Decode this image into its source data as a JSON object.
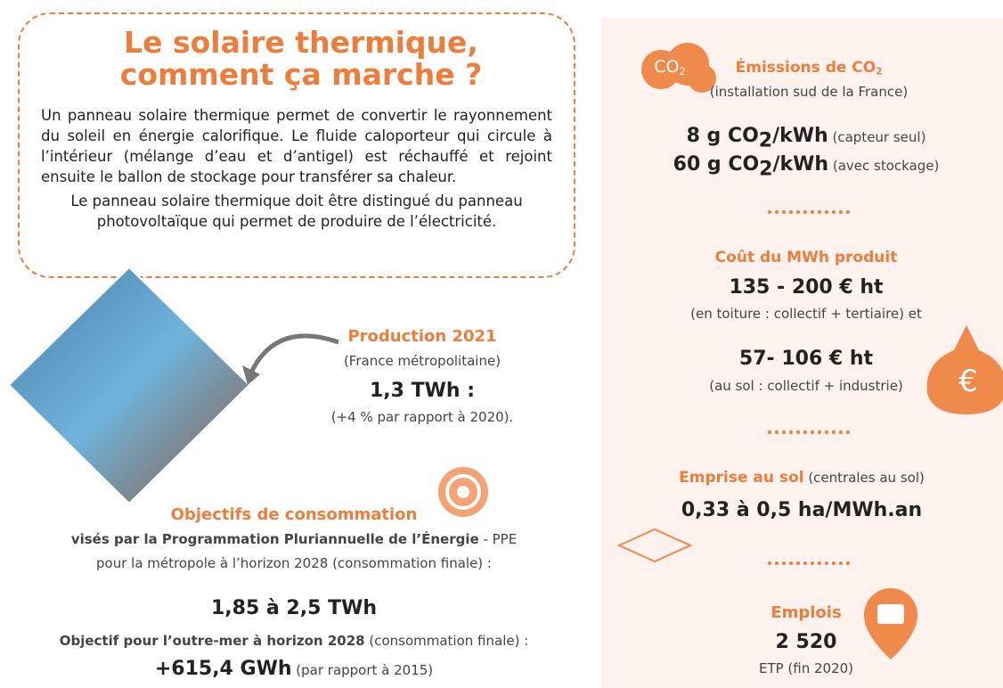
{
  "intro": {
    "title_lines": [
      "Le solaire thermique,",
      "comment ça marche ?"
    ],
    "paragraphs": [
      "Un panneau solaire thermique permet de convertir le rayonnement du soleil en énergie calorifique. Le fluide caloporteur qui circule à l’intérieur (mélange d’eau et d’antigel) est réchauffé et rejoint ensuite le ballon de stockage pour transférer sa chaleur.",
      "Le panneau solaire thermique doit être distingué du panneau photovoltaïque qui permet de produire de l’électricité."
    ]
  },
  "production": {
    "title": "Production 2021",
    "scope": "(France métropolitaine)",
    "value": "1,3 TWh :",
    "note": "(+4 % par rapport à 2020)."
  },
  "objectives": {
    "title": "Objectifs de consommation",
    "line1_bold": "visés par la Programmation Pluriannuelle de l’Énergie",
    "line1_rest": " - PPE",
    "line2": "pour la métropole à l’horizon 2028 (consommation finale) :",
    "metro_value": "1,85 à 2,5 TWh",
    "overseas_bold": "Objectif pour l’outre-mer à horizon 2028",
    "overseas_rest": " (consommation finale) :",
    "overseas_value": "+615,4 GWh",
    "overseas_note": " (par rapport à 2015)"
  },
  "emissions": {
    "icon_label": "CO",
    "icon_sub": "2",
    "title": "Émissions de CO",
    "title_sub": "2",
    "scope": "(installation sud de la France)",
    "rows": [
      {
        "value": "8 g CO",
        "sub": "2",
        "unit": "/kWh",
        "note": " (capteur seul)"
      },
      {
        "value": "60 g CO",
        "sub": "2",
        "unit": "/kWh",
        "note": " (avec stockage)"
      }
    ]
  },
  "cost": {
    "title": "Coût du MWh produit",
    "icon": "€",
    "rows": [
      {
        "value": "135 - 200 € ht",
        "note": "(en toiture : collectif + tertiaire) et"
      },
      {
        "value": "57- 106 € ht",
        "note": "(au sol : collectif + industrie)"
      }
    ]
  },
  "land": {
    "title": "Emprise au sol",
    "title_note": " (centrales au sol)",
    "value": "0,33 à 0,5 ha/MWh.an"
  },
  "jobs": {
    "title": "Emplois",
    "value": "2 520",
    "note": "ETP (fin 2020)"
  }
}
